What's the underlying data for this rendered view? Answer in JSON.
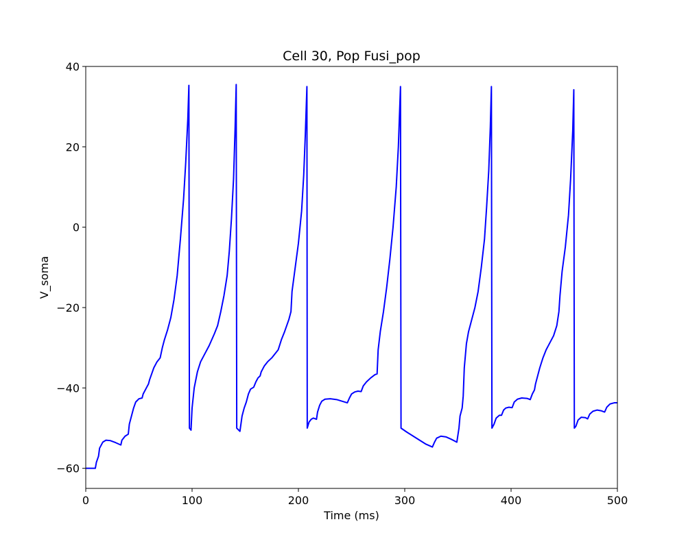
{
  "chart_data": {
    "type": "line",
    "title": "Cell 30, Pop Fusi_pop",
    "xlabel": "Time (ms)",
    "ylabel": "V_soma",
    "xlim": [
      0,
      500
    ],
    "ylim": [
      -65,
      40
    ],
    "x_ticks": [
      0,
      100,
      200,
      300,
      400,
      500
    ],
    "y_ticks": [
      -60,
      -40,
      -20,
      0,
      20,
      40
    ],
    "x_tick_labels": [
      "0",
      "100",
      "200",
      "300",
      "400",
      "500"
    ],
    "y_tick_labels": [
      "−60",
      "−40",
      "−20",
      "0",
      "20",
      "40"
    ],
    "series": [
      {
        "name": "V_soma",
        "color": "#0000ff",
        "points": [
          [
            0,
            -60
          ],
          [
            9,
            -60
          ],
          [
            10,
            -58.5
          ],
          [
            12,
            -57
          ],
          [
            13,
            -55
          ],
          [
            16,
            -53.5
          ],
          [
            19,
            -53
          ],
          [
            23,
            -53.1
          ],
          [
            28,
            -53.6
          ],
          [
            33,
            -54.2
          ],
          [
            34,
            -53
          ],
          [
            37,
            -52
          ],
          [
            40,
            -51.5
          ],
          [
            41,
            -49
          ],
          [
            43,
            -47
          ],
          [
            45,
            -45
          ],
          [
            47,
            -43.5
          ],
          [
            50,
            -42.7
          ],
          [
            53,
            -42.5
          ],
          [
            54,
            -41.5
          ],
          [
            57,
            -40
          ],
          [
            59,
            -39
          ],
          [
            60,
            -38
          ],
          [
            62,
            -36.5
          ],
          [
            64,
            -35
          ],
          [
            67,
            -33.5
          ],
          [
            70,
            -32.5
          ],
          [
            72,
            -30
          ],
          [
            74,
            -28
          ],
          [
            77,
            -25.5
          ],
          [
            80,
            -22.5
          ],
          [
            83,
            -18
          ],
          [
            86,
            -12
          ],
          [
            89,
            -3
          ],
          [
            92,
            7
          ],
          [
            94,
            16
          ],
          [
            96,
            27
          ],
          [
            97,
            35.3
          ],
          [
            97.5,
            -50
          ],
          [
            99,
            -50.5
          ],
          [
            100,
            -45
          ],
          [
            102,
            -40
          ],
          [
            105,
            -36
          ],
          [
            108,
            -33.5
          ],
          [
            112,
            -31.5
          ],
          [
            116,
            -29.5
          ],
          [
            121,
            -26.5
          ],
          [
            124,
            -24.5
          ],
          [
            127,
            -21
          ],
          [
            130,
            -17
          ],
          [
            133,
            -12
          ],
          [
            135,
            -6
          ],
          [
            137,
            2
          ],
          [
            139,
            12
          ],
          [
            140.5,
            25
          ],
          [
            141.5,
            35.5
          ],
          [
            142,
            -50
          ],
          [
            145,
            -50.8
          ],
          [
            147,
            -47
          ],
          [
            149,
            -45
          ],
          [
            151,
            -43.5
          ],
          [
            153,
            -41.5
          ],
          [
            155,
            -40.3
          ],
          [
            158,
            -39.8
          ],
          [
            160,
            -38.5
          ],
          [
            162,
            -37.5
          ],
          [
            164,
            -37
          ],
          [
            165,
            -36
          ],
          [
            168,
            -34.5
          ],
          [
            171,
            -33.5
          ],
          [
            175,
            -32.5
          ],
          [
            178,
            -31.5
          ],
          [
            181,
            -30.5
          ],
          [
            184,
            -28
          ],
          [
            187,
            -26
          ],
          [
            191,
            -23
          ],
          [
            193,
            -21
          ],
          [
            194,
            -16
          ],
          [
            197,
            -10
          ],
          [
            200,
            -4
          ],
          [
            203,
            4
          ],
          [
            205,
            13
          ],
          [
            206.5,
            23
          ],
          [
            208,
            35
          ],
          [
            208.3,
            -50
          ],
          [
            210,
            -48.5
          ],
          [
            212,
            -47.8
          ],
          [
            214,
            -47.5
          ],
          [
            217,
            -47.8
          ],
          [
            218,
            -46
          ],
          [
            220,
            -44.3
          ],
          [
            222,
            -43.3
          ],
          [
            225,
            -42.8
          ],
          [
            230,
            -42.7
          ],
          [
            236,
            -42.9
          ],
          [
            241,
            -43.3
          ],
          [
            246,
            -43.7
          ],
          [
            248,
            -42.5
          ],
          [
            250,
            -41.5
          ],
          [
            253,
            -41
          ],
          [
            256,
            -40.8
          ],
          [
            259,
            -40.9
          ],
          [
            261,
            -39.5
          ],
          [
            264,
            -38.5
          ],
          [
            268,
            -37.5
          ],
          [
            272,
            -36.7
          ],
          [
            274,
            -36.5
          ],
          [
            275,
            -30.5
          ],
          [
            277,
            -26
          ],
          [
            280,
            -21
          ],
          [
            283,
            -15
          ],
          [
            286,
            -8
          ],
          [
            289,
            0
          ],
          [
            292,
            10
          ],
          [
            294,
            20
          ],
          [
            296,
            35
          ],
          [
            296.5,
            -50
          ],
          [
            302,
            -51
          ],
          [
            308,
            -52
          ],
          [
            314,
            -53
          ],
          [
            320,
            -54
          ],
          [
            326,
            -54.7
          ],
          [
            328,
            -53.5
          ],
          [
            330,
            -52.5
          ],
          [
            334,
            -52
          ],
          [
            339,
            -52.2
          ],
          [
            344,
            -52.8
          ],
          [
            349,
            -53.5
          ],
          [
            351,
            -50
          ],
          [
            352,
            -47
          ],
          [
            354,
            -45
          ],
          [
            355,
            -42
          ],
          [
            356,
            -35
          ],
          [
            358,
            -29
          ],
          [
            360,
            -26
          ],
          [
            363,
            -23
          ],
          [
            366,
            -20
          ],
          [
            369,
            -16
          ],
          [
            372,
            -10
          ],
          [
            375,
            -3
          ],
          [
            377,
            5
          ],
          [
            379,
            14
          ],
          [
            380.5,
            25
          ],
          [
            381.5,
            35
          ],
          [
            382,
            -50
          ],
          [
            384,
            -49
          ],
          [
            386,
            -47.5
          ],
          [
            389,
            -46.8
          ],
          [
            391,
            -46.8
          ],
          [
            393,
            -45.5
          ],
          [
            395,
            -45
          ],
          [
            398,
            -44.8
          ],
          [
            401,
            -44.9
          ],
          [
            403,
            -43.5
          ],
          [
            406,
            -42.8
          ],
          [
            410,
            -42.5
          ],
          [
            415,
            -42.6
          ],
          [
            418,
            -42.9
          ],
          [
            420,
            -41.5
          ],
          [
            422,
            -40.5
          ],
          [
            423,
            -39
          ],
          [
            425,
            -37
          ],
          [
            427,
            -35
          ],
          [
            430,
            -32.5
          ],
          [
            433,
            -30.5
          ],
          [
            436,
            -29
          ],
          [
            440,
            -27
          ],
          [
            443,
            -24.5
          ],
          [
            445,
            -21
          ],
          [
            446,
            -17
          ],
          [
            448,
            -11
          ],
          [
            451,
            -5
          ],
          [
            454,
            3
          ],
          [
            456,
            12
          ],
          [
            458,
            24
          ],
          [
            459,
            34.2
          ],
          [
            459.5,
            -50
          ],
          [
            461,
            -49.5
          ],
          [
            463,
            -48
          ],
          [
            466,
            -47.3
          ],
          [
            470,
            -47.4
          ],
          [
            472,
            -47.7
          ],
          [
            474,
            -46.5
          ],
          [
            477,
            -45.8
          ],
          [
            481,
            -45.5
          ],
          [
            485,
            -45.7
          ],
          [
            488,
            -46
          ],
          [
            490,
            -44.8
          ],
          [
            493,
            -44
          ],
          [
            497,
            -43.7
          ],
          [
            500,
            -43.7
          ]
        ]
      }
    ]
  }
}
